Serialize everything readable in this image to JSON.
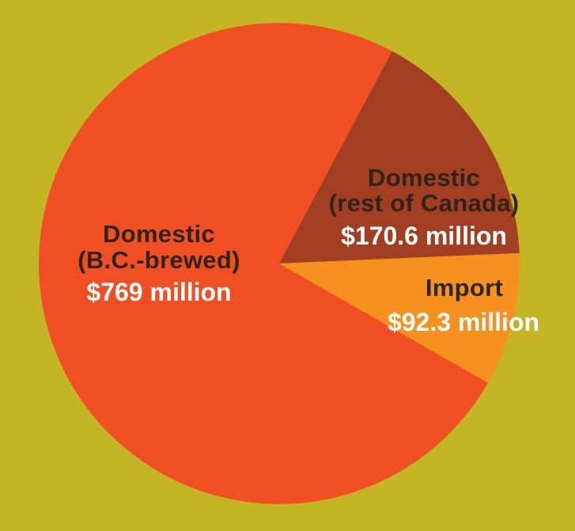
{
  "chart_data": {
    "type": "pie",
    "legend": "none",
    "slices": [
      {
        "label_lines": [
          "Domestic",
          "(B.C.-brewed)"
        ],
        "value_label": "$769 million",
        "value": 769,
        "color": "#f04f24"
      },
      {
        "label_lines": [
          "Domestic",
          "(rest of Canada)"
        ],
        "value_label": "$170.6 million",
        "value": 170.6,
        "color": "#a23f22"
      },
      {
        "label_lines": [
          "Import"
        ],
        "value_label": "$92.3 million",
        "value": 92.3,
        "color": "#f6911f"
      }
    ],
    "colors": {
      "background": "#c4b524",
      "label_text": "#2e2418",
      "value_text": "#ffffff"
    }
  }
}
